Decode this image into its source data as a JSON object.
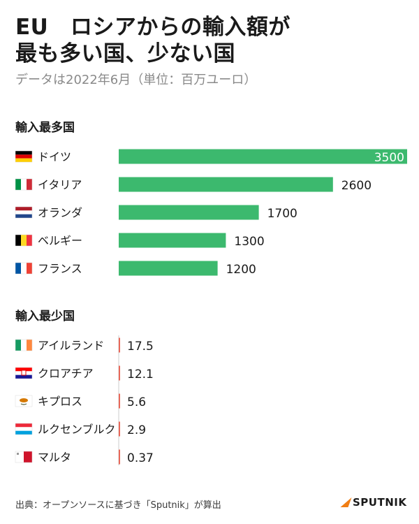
{
  "header": {
    "title_line1": "EU　ロシアからの輸入額が",
    "title_line2": "最も多い国、少ない国",
    "subtitle": "データは2022年6月（単位：百万ユーロ）"
  },
  "sections": {
    "top_title": "輸入最多国",
    "bottom_title": "輸入最少国"
  },
  "footer": {
    "source": "出典：オープンソースに基づき「Sputnik」が算出",
    "brand": "SPUTNIK"
  },
  "colors": {
    "bar": "#3cb96e",
    "bar_small": "#e8685a",
    "axis": "#cccccc",
    "brand_accent": "#f07e14"
  },
  "chart_data": [
    {
      "type": "bar",
      "orientation": "horizontal",
      "title": "輸入最多国",
      "categories": [
        "ドイツ",
        "イタリア",
        "オランダ",
        "ベルギー",
        "フランス"
      ],
      "flags": [
        "germany-flag",
        "italy-flag",
        "netherlands-flag",
        "belgium-flag",
        "france-flag"
      ],
      "values": [
        3500,
        2600,
        1700,
        1300,
        1200
      ],
      "value_labels": [
        "3500",
        "2600",
        "1700",
        "1300",
        "1200"
      ],
      "xlim": [
        0,
        3500
      ]
    },
    {
      "type": "bar",
      "orientation": "horizontal",
      "title": "輸入最少国",
      "categories": [
        "アイルランド",
        "クロアチア",
        "キプロス",
        "ルクセンブルク",
        "マルタ"
      ],
      "flags": [
        "ireland-flag",
        "croatia-flag",
        "cyprus-flag",
        "luxembourg-flag",
        "malta-flag"
      ],
      "values": [
        17.5,
        12.1,
        5.6,
        2.9,
        0.37
      ],
      "value_labels": [
        "17.5",
        "12.1",
        "5.6",
        "2.9",
        "0.37"
      ],
      "xlim": [
        0,
        3500
      ]
    }
  ]
}
